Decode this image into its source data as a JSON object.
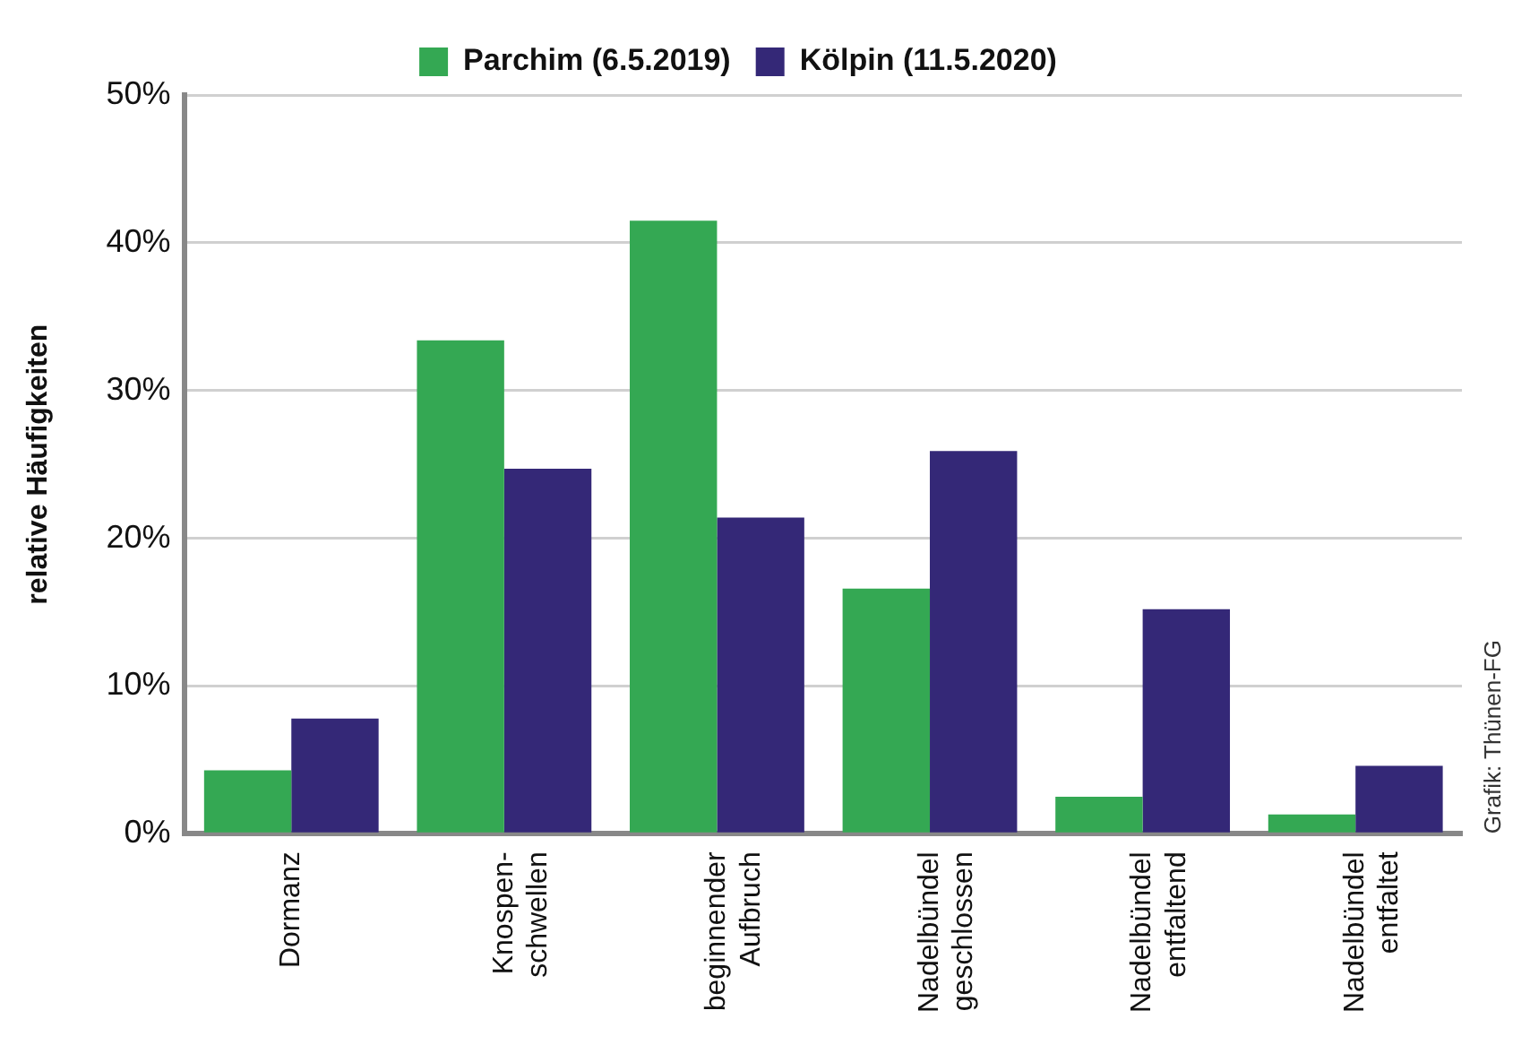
{
  "chart_data": {
    "type": "bar",
    "ylabel": "relative Häufigkeiten",
    "categories": [
      "Dormanz",
      "Knospen-\nschwellen",
      "beginnender\nAufbruch",
      "Nadelbündel\ngeschlossen",
      "Nadelbündel\nentfaltend",
      "Nadelbündel\nentfaltet"
    ],
    "series": [
      {
        "name": "Parchim (6.5.2019)",
        "color": "#34a853",
        "values": [
          4.3,
          33.4,
          41.5,
          16.6,
          2.5,
          1.3
        ]
      },
      {
        "name": "Kölpin (11.5.2020)",
        "color": "#342877",
        "values": [
          7.8,
          24.7,
          21.4,
          25.9,
          15.2,
          4.6
        ]
      }
    ],
    "ylim": [
      0,
      50
    ],
    "yticks": [
      {
        "value": 0,
        "label": "0%"
      },
      {
        "value": 10,
        "label": "10%"
      },
      {
        "value": 20,
        "label": "20%"
      },
      {
        "value": 30,
        "label": "30%"
      },
      {
        "value": 40,
        "label": "40%"
      },
      {
        "value": 50,
        "label": "50%"
      }
    ],
    "grid": "y",
    "legend": "top",
    "annotations": [
      "Grafik: Thünen-FG"
    ]
  }
}
